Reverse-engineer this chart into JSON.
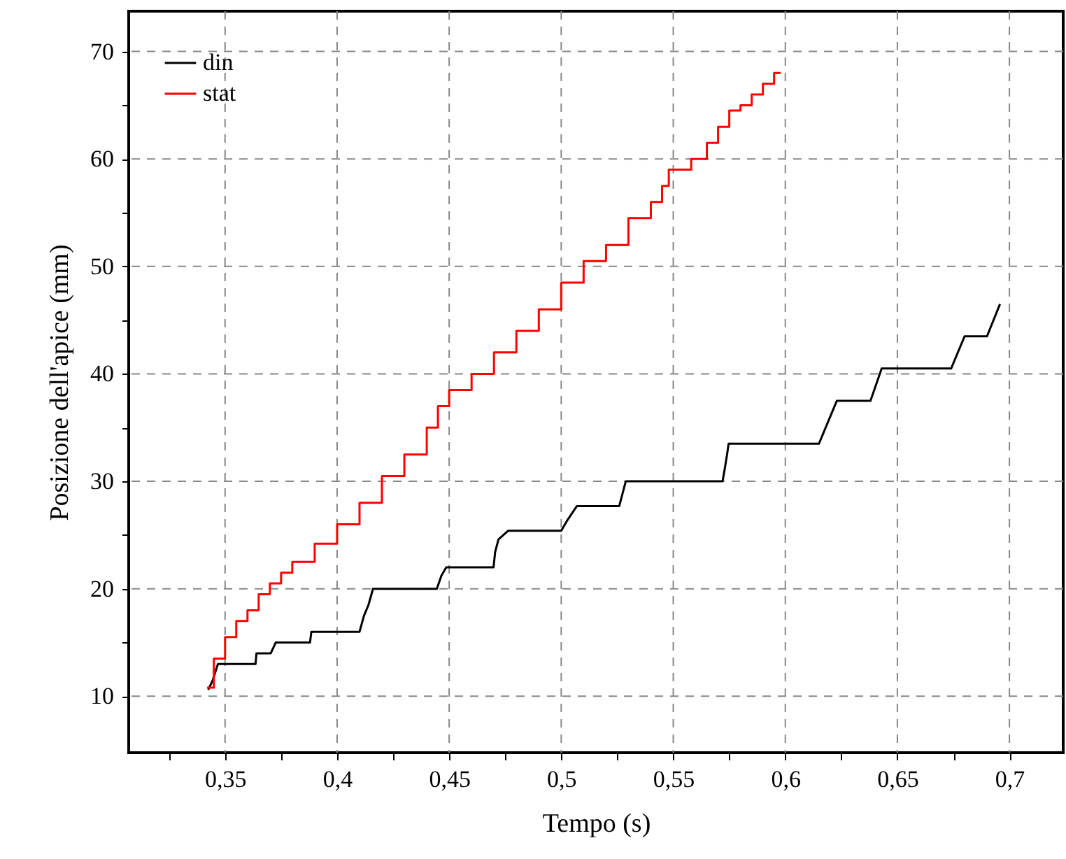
{
  "chart_data": {
    "type": "line",
    "xlabel": "Tempo (s)",
    "ylabel": "Posizione dell'apice (mm)",
    "xlim": [
      0.307,
      0.724
    ],
    "ylim": [
      4.75,
      73.75
    ],
    "xticks": [
      {
        "value": 0.325,
        "label": null
      },
      {
        "value": 0.35,
        "label": "0,35"
      },
      {
        "value": 0.375,
        "label": null
      },
      {
        "value": 0.4,
        "label": "0,4"
      },
      {
        "value": 0.425,
        "label": null
      },
      {
        "value": 0.45,
        "label": "0,45"
      },
      {
        "value": 0.475,
        "label": null
      },
      {
        "value": 0.5,
        "label": "0,5"
      },
      {
        "value": 0.525,
        "label": null
      },
      {
        "value": 0.55,
        "label": "0,55"
      },
      {
        "value": 0.575,
        "label": null
      },
      {
        "value": 0.6,
        "label": "0,6"
      },
      {
        "value": 0.625,
        "label": null
      },
      {
        "value": 0.65,
        "label": "0,65"
      },
      {
        "value": 0.675,
        "label": null
      },
      {
        "value": 0.7,
        "label": "0,7"
      }
    ],
    "yticks": [
      10,
      {
        "value": 15,
        "label": null
      },
      20,
      {
        "value": 25,
        "label": null
      },
      30,
      {
        "value": 35,
        "label": null
      },
      40,
      {
        "value": 45,
        "label": null
      },
      50,
      {
        "value": 55,
        "label": null
      },
      60,
      {
        "value": 65,
        "label": null
      },
      70
    ],
    "grid": true,
    "legend": "top left",
    "marker": "none",
    "line_style": "solid",
    "series": [
      {
        "name": "din",
        "color": "#000000",
        "x": [
          0.3425,
          0.3445,
          0.3468,
          0.3636,
          0.364,
          0.3704,
          0.3726,
          0.3879,
          0.3885,
          0.41,
          0.412,
          0.414,
          0.416,
          0.4445,
          0.4465,
          0.4487,
          0.4698,
          0.4705,
          0.472,
          0.4763,
          0.5,
          0.5025,
          0.507,
          0.5259,
          0.5288,
          0.572,
          0.573,
          0.574,
          0.5747,
          0.615,
          0.623,
          0.638,
          0.643,
          0.674,
          0.68,
          0.69,
          0.6958
        ],
        "values": [
          10.6,
          11.5,
          13,
          13,
          14,
          14,
          15,
          15,
          16,
          16,
          17.5,
          18.5,
          20,
          20,
          21.2,
          22,
          22,
          23.4,
          24.6,
          25.4,
          25.4,
          26.3,
          27.7,
          27.7,
          30,
          30,
          31.2,
          32.5,
          33.5,
          33.5,
          37.5,
          37.5,
          40.5,
          40.5,
          43.5,
          43.5,
          46.5
        ]
      },
      {
        "name": "stat",
        "color": "#ff0000",
        "type": "step",
        "x": [
          0.342,
          0.345,
          0.35,
          0.355,
          0.36,
          0.365,
          0.37,
          0.375,
          0.38,
          0.39,
          0.4,
          0.41,
          0.42,
          0.43,
          0.44,
          0.445,
          0.45,
          0.46,
          0.47,
          0.48,
          0.49,
          0.5,
          0.51,
          0.52,
          0.53,
          0.54,
          0.545,
          0.548,
          0.555,
          0.558,
          0.565,
          0.57,
          0.575,
          0.58,
          0.585,
          0.59,
          0.595,
          0.598
        ],
        "values": [
          10.8,
          13.5,
          15.5,
          17,
          18,
          19.5,
          20.5,
          21.5,
          22.5,
          24.2,
          26,
          28,
          30.5,
          32.5,
          35,
          37,
          38.5,
          40,
          42,
          44,
          46,
          48.5,
          50.5,
          52,
          54.5,
          56,
          57.5,
          59,
          59,
          60,
          61.5,
          63,
          64.5,
          65,
          66,
          67,
          68,
          68
        ]
      }
    ]
  }
}
